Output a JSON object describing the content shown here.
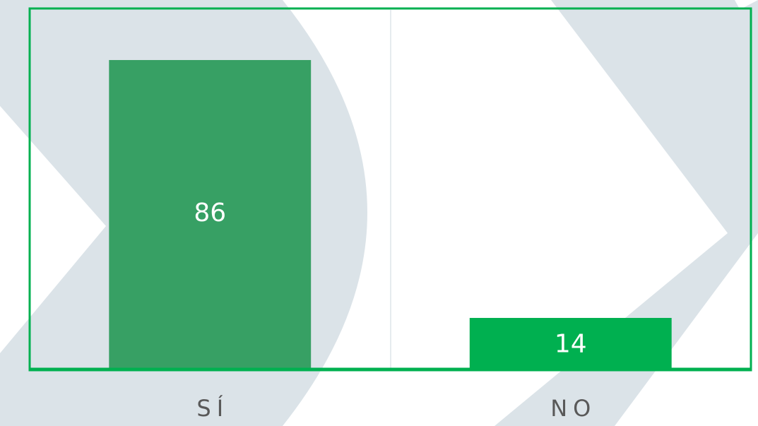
{
  "chart_data": {
    "type": "bar",
    "categories": [
      "SÍ",
      "NO"
    ],
    "values": [
      86,
      14
    ],
    "colors": [
      "#37a064",
      "#00b050"
    ],
    "ylim": [
      0,
      100
    ]
  }
}
